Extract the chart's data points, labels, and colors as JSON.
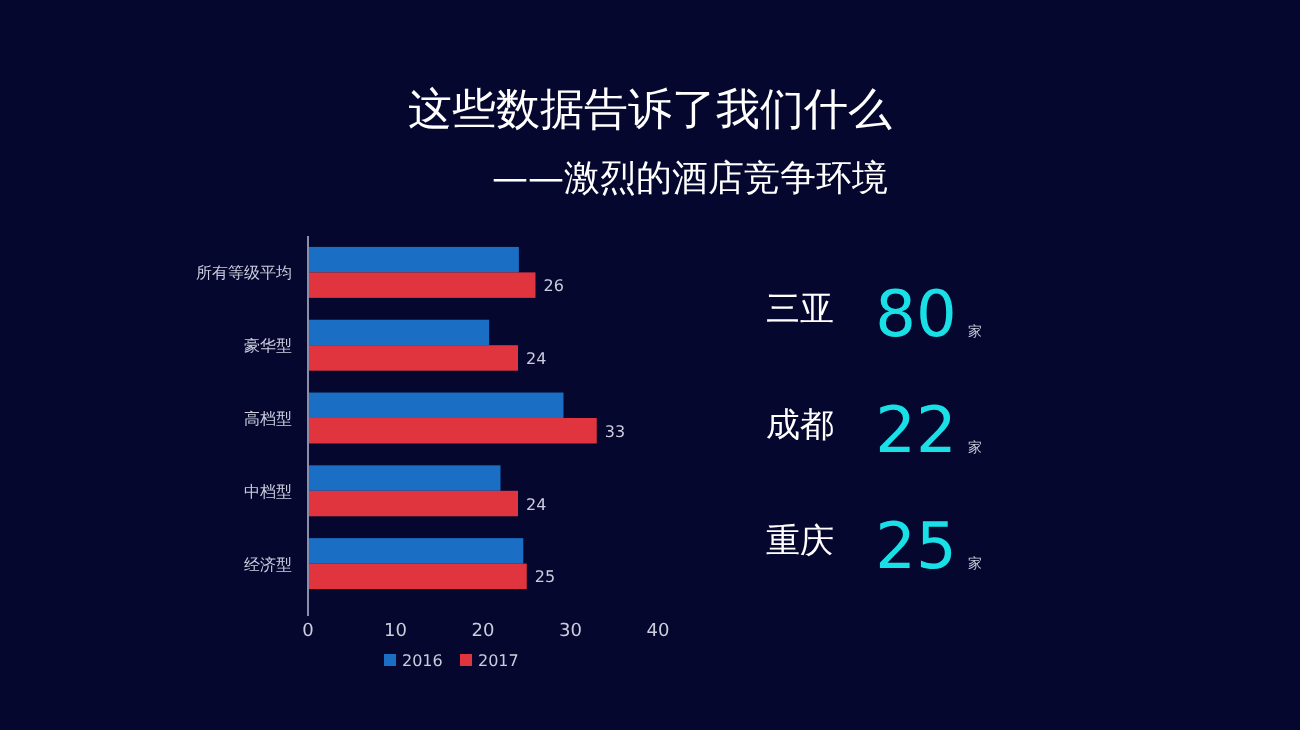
{
  "chart_data": [
    {
      "type": "bar",
      "title": "这些数据告诉了我们什么",
      "subtitle": "——激烈的酒店竞争环境",
      "orientation": "horizontal",
      "categories": [
        "所有等级平均",
        "豪华型",
        "高档型",
        "中档型",
        "经济型"
      ],
      "series": [
        {
          "name": "2016",
          "color": "#1a6fc4",
          "values": [
            24.1,
            20.7,
            29.2,
            22.0,
            24.6
          ]
        },
        {
          "name": "2017",
          "color": "#e0353f",
          "values": [
            26,
            24,
            33,
            24,
            25
          ],
          "value_labels": [
            "26",
            "24",
            "33",
            "24",
            "25"
          ]
        }
      ],
      "xlim": [
        0,
        40
      ],
      "xticks": [
        0,
        10,
        20,
        30,
        40
      ],
      "legend": "bottom",
      "grid": false
    },
    {
      "type": "other",
      "categories": [
        "三亚",
        "成都",
        "重庆"
      ],
      "values": [
        80,
        22,
        25
      ],
      "data_labels": true,
      "annotations": [
        "家",
        "家",
        "家"
      ]
    }
  ]
}
